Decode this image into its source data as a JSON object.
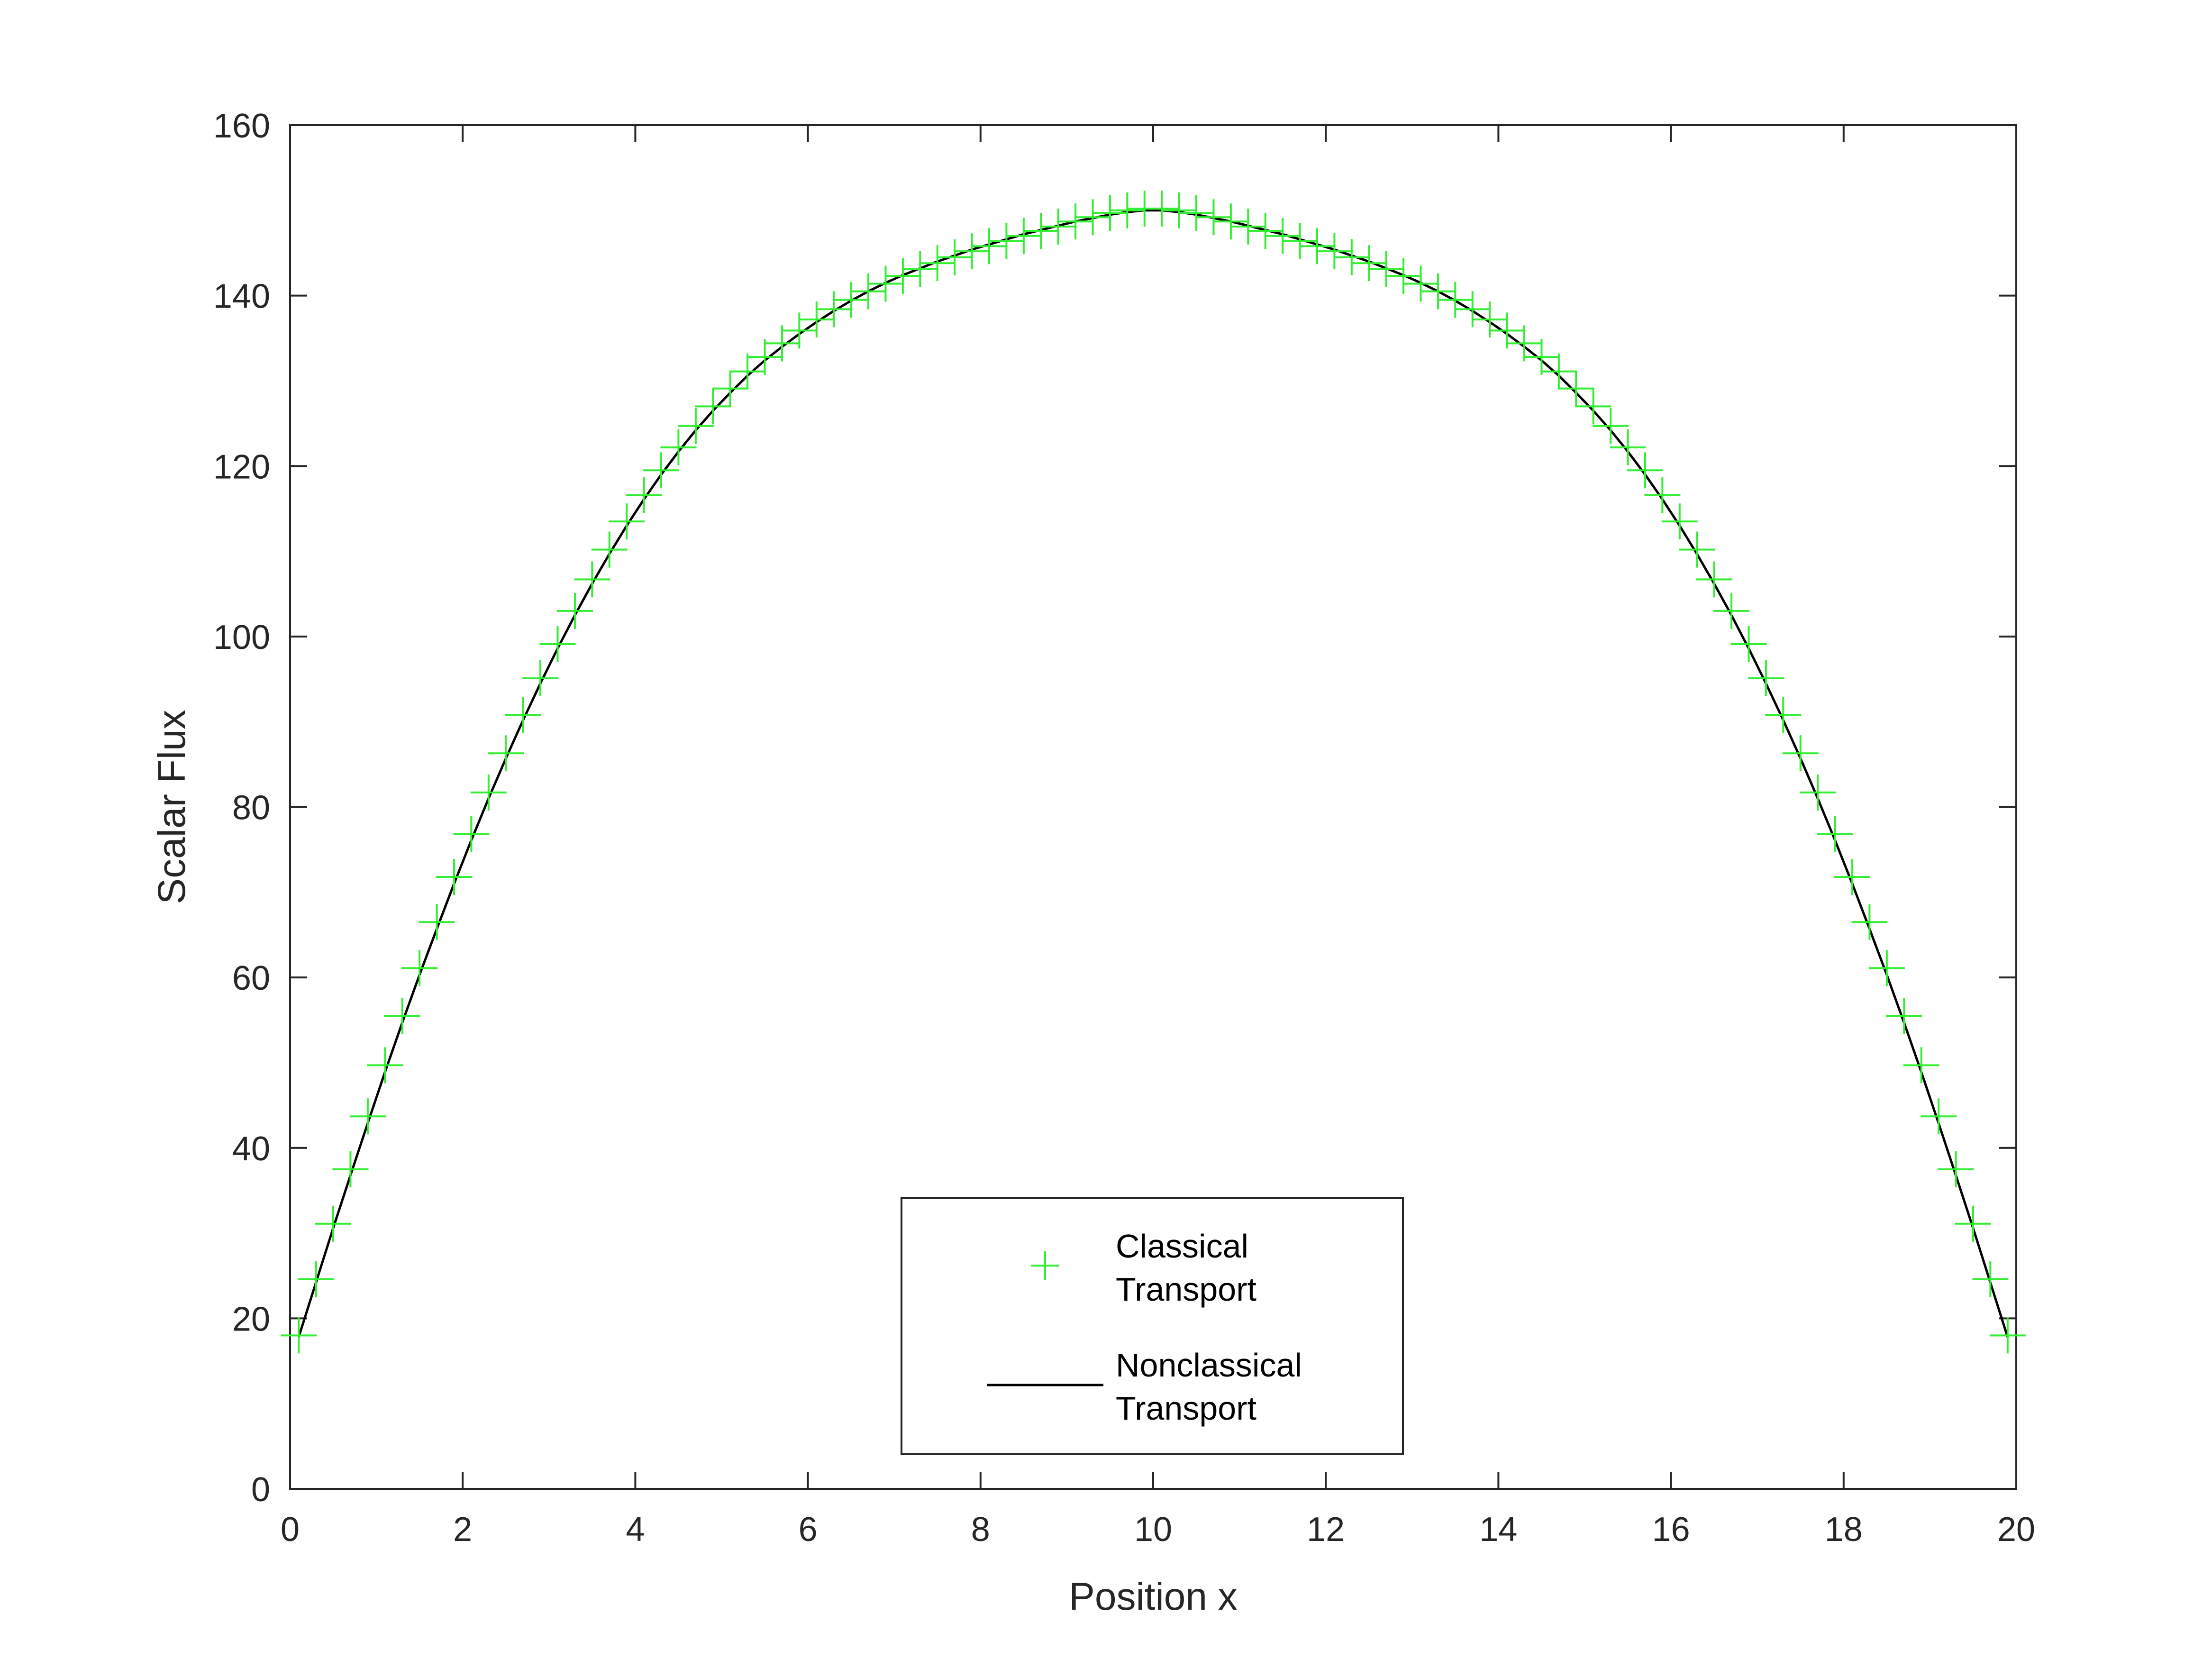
{
  "chart_data": {
    "type": "scatter",
    "xlabel": "Position x",
    "ylabel": "Scalar Flux",
    "xlim": [
      0,
      20
    ],
    "ylim": [
      0,
      160
    ],
    "xticks": [
      0,
      2,
      4,
      6,
      8,
      10,
      12,
      14,
      16,
      18,
      20
    ],
    "yticks": [
      0,
      20,
      40,
      60,
      80,
      100,
      120,
      140,
      160
    ],
    "xtick_labels": [
      "0",
      "2",
      "4",
      "6",
      "8",
      "10",
      "12",
      "14",
      "16",
      "18",
      "20"
    ],
    "ytick_labels": [
      "0",
      "20",
      "40",
      "60",
      "80",
      "100",
      "120",
      "140",
      "160"
    ],
    "grid": false,
    "legend_position": "bottom-center",
    "series": [
      {
        "name": "Classical Transport",
        "marker": "plus",
        "line": "none",
        "color": "#33ee33",
        "x": [
          0.1,
          0.3,
          0.5,
          0.7,
          0.9,
          1.1,
          1.3,
          1.5,
          1.7,
          1.9,
          2.1,
          2.3,
          2.5,
          2.7,
          2.9,
          3.1,
          3.3,
          3.5,
          3.7,
          3.9,
          4.1,
          4.3,
          4.5,
          4.7,
          4.9,
          5.1,
          5.3,
          5.5,
          5.7,
          5.9,
          6.1,
          6.3,
          6.5,
          6.7,
          6.9,
          7.1,
          7.3,
          7.5,
          7.7,
          7.9,
          8.1,
          8.3,
          8.5,
          8.7,
          8.9,
          9.1,
          9.3,
          9.5,
          9.7,
          9.9,
          10.1,
          10.3,
          10.5,
          10.7,
          10.9,
          11.1,
          11.3,
          11.5,
          11.7,
          11.9,
          12.1,
          12.3,
          12.5,
          12.7,
          12.9,
          13.1,
          13.3,
          13.5,
          13.7,
          13.9,
          14.1,
          14.3,
          14.5,
          14.7,
          14.9,
          15.1,
          15.3,
          15.5,
          15.7,
          15.9,
          16.1,
          16.3,
          16.5,
          16.7,
          16.9,
          17.1,
          17.3,
          17.5,
          17.7,
          17.9,
          18.1,
          18.3,
          18.5,
          18.7,
          18.9,
          19.1,
          19.3,
          19.5,
          19.7,
          19.9
        ],
        "y": [
          18.0,
          24.6,
          31.1,
          37.5,
          43.7,
          49.7,
          55.5,
          61.1,
          66.5,
          71.8,
          76.8,
          81.7,
          86.3,
          90.8,
          95.1,
          99.1,
          103.0,
          106.7,
          110.2,
          113.5,
          116.6,
          119.5,
          122.2,
          124.7,
          127.0,
          129.1,
          131.1,
          132.8,
          134.4,
          135.9,
          137.2,
          138.4,
          139.5,
          140.5,
          141.4,
          142.3,
          143.1,
          143.8,
          144.5,
          145.2,
          145.8,
          146.4,
          147.0,
          147.6,
          148.1,
          148.7,
          149.2,
          149.7,
          150.0,
          150.2,
          150.2,
          150.0,
          149.7,
          149.2,
          148.7,
          148.1,
          147.6,
          147.0,
          146.4,
          145.8,
          145.2,
          144.5,
          143.8,
          143.1,
          142.3,
          141.4,
          140.5,
          139.5,
          138.4,
          137.2,
          135.9,
          134.4,
          132.8,
          131.1,
          129.1,
          127.0,
          124.7,
          122.2,
          119.5,
          116.6,
          113.5,
          110.2,
          106.7,
          103.0,
          99.1,
          95.1,
          90.8,
          86.3,
          81.7,
          76.8,
          71.8,
          66.5,
          61.1,
          55.5,
          49.7,
          43.7,
          37.5,
          31.1,
          24.6,
          18.0
        ]
      },
      {
        "name": "Nonclassical Transport",
        "marker": "none",
        "line": "solid",
        "color": "#000000",
        "x": [
          0.1,
          0.3,
          0.5,
          0.7,
          0.9,
          1.1,
          1.3,
          1.5,
          1.7,
          1.9,
          2.1,
          2.3,
          2.5,
          2.7,
          2.9,
          3.1,
          3.3,
          3.5,
          3.7,
          3.9,
          4.1,
          4.3,
          4.5,
          4.7,
          4.9,
          5.1,
          5.3,
          5.5,
          5.7,
          5.9,
          6.1,
          6.3,
          6.5,
          6.7,
          6.9,
          7.1,
          7.3,
          7.5,
          7.7,
          7.9,
          8.1,
          8.3,
          8.5,
          8.7,
          8.9,
          9.1,
          9.3,
          9.5,
          9.7,
          9.9,
          10.1,
          10.3,
          10.5,
          10.7,
          10.9,
          11.1,
          11.3,
          11.5,
          11.7,
          11.9,
          12.1,
          12.3,
          12.5,
          12.7,
          12.9,
          13.1,
          13.3,
          13.5,
          13.7,
          13.9,
          14.1,
          14.3,
          14.5,
          14.7,
          14.9,
          15.1,
          15.3,
          15.5,
          15.7,
          15.9,
          16.1,
          16.3,
          16.5,
          16.7,
          16.9,
          17.1,
          17.3,
          17.5,
          17.7,
          17.9,
          18.1,
          18.3,
          18.5,
          18.7,
          18.9,
          19.1,
          19.3,
          19.5,
          19.7,
          19.9
        ],
        "y": [
          17.8,
          24.2,
          30.6,
          36.8,
          42.9,
          48.9,
          54.7,
          60.3,
          65.7,
          71.0,
          76.1,
          81.0,
          85.7,
          90.2,
          94.5,
          98.6,
          102.5,
          106.2,
          109.7,
          113.0,
          116.1,
          119.0,
          121.7,
          124.2,
          126.5,
          128.6,
          130.6,
          132.4,
          134.0,
          135.5,
          136.9,
          138.2,
          139.4,
          140.5,
          141.5,
          142.4,
          143.2,
          144.0,
          144.7,
          145.4,
          146.0,
          146.6,
          147.2,
          147.7,
          148.2,
          148.7,
          149.1,
          149.5,
          149.8,
          150.0,
          150.0,
          149.8,
          149.5,
          149.1,
          148.7,
          148.2,
          147.7,
          147.2,
          146.6,
          146.0,
          145.4,
          144.7,
          144.0,
          143.2,
          142.4,
          141.5,
          140.5,
          139.4,
          138.2,
          136.9,
          135.5,
          134.0,
          132.4,
          130.6,
          128.6,
          126.5,
          124.2,
          121.7,
          119.0,
          116.1,
          113.0,
          109.7,
          106.2,
          102.5,
          98.6,
          94.5,
          90.2,
          85.7,
          81.0,
          76.1,
          71.0,
          65.7,
          60.3,
          54.7,
          48.9,
          42.9,
          36.8,
          30.6,
          24.2,
          17.8
        ]
      }
    ],
    "legend": {
      "entries": [
        {
          "lines": [
            "Classical",
            "Transport"
          ]
        },
        {
          "lines": [
            "Nonclassical",
            "Transport"
          ]
        }
      ]
    }
  }
}
